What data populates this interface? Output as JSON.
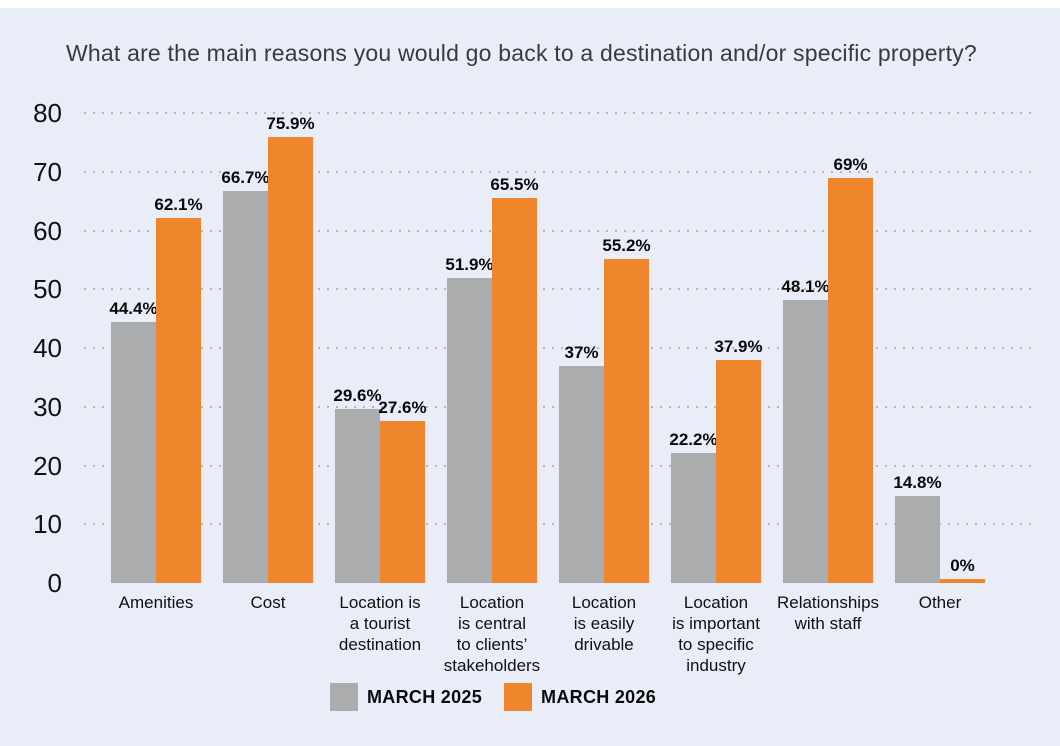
{
  "title": "What are the main reasons you would go back to a destination and/or specific property?",
  "colors": {
    "background": "#E9EDF7",
    "series_march_2025": "#ABACAE",
    "series_march_2026": "#F0862B",
    "gridline": "#B5B6BB",
    "label_text": "#0A0A0A",
    "title_text": "#3A3A3A"
  },
  "chart_data": {
    "type": "bar",
    "title": "What are the main reasons you would go back to a destination and/or specific property?",
    "categories": [
      "Amenities",
      "Cost",
      "Location is a tourist destination",
      "Location is central to clients’ stakeholders",
      "Location is easily drivable",
      "Location is important to specific industry",
      "Relationships with staff",
      "Other"
    ],
    "category_lines": [
      [
        "Amenities"
      ],
      [
        "Cost"
      ],
      [
        "Location is",
        "a tourist",
        "destination"
      ],
      [
        "Location",
        "is central",
        "to clients’",
        "stakeholders"
      ],
      [
        "Location",
        "is easily",
        "drivable"
      ],
      [
        "Location",
        "is important",
        "to specific",
        "industry"
      ],
      [
        "Relationships",
        "with staff"
      ],
      [
        "Other"
      ]
    ],
    "series": [
      {
        "name": "MARCH 2025",
        "color": "#ABACAE",
        "values": [
          44.4,
          66.7,
          29.6,
          51.9,
          37,
          22.2,
          48.1,
          14.8
        ],
        "labels": [
          "44.4%",
          "66.7%",
          "29.6%",
          "51.9%",
          "37%",
          "22.2%",
          "48.1%",
          "14.8%"
        ]
      },
      {
        "name": "MARCH 2026",
        "color": "#F0862B",
        "values": [
          62.1,
          75.9,
          27.6,
          65.5,
          55.2,
          37.9,
          69,
          0
        ],
        "labels": [
          "62.1%",
          "75.9%",
          "27.6%",
          "65.5%",
          "55.2%",
          "37.9%",
          "69%",
          "0%"
        ]
      }
    ],
    "xlabel": "",
    "ylabel": "",
    "ylim": [
      0,
      80
    ],
    "yticks": [
      0,
      10,
      20,
      30,
      40,
      50,
      60,
      70,
      80
    ],
    "grid": "horizontal-dotted",
    "legend_position": "bottom"
  }
}
